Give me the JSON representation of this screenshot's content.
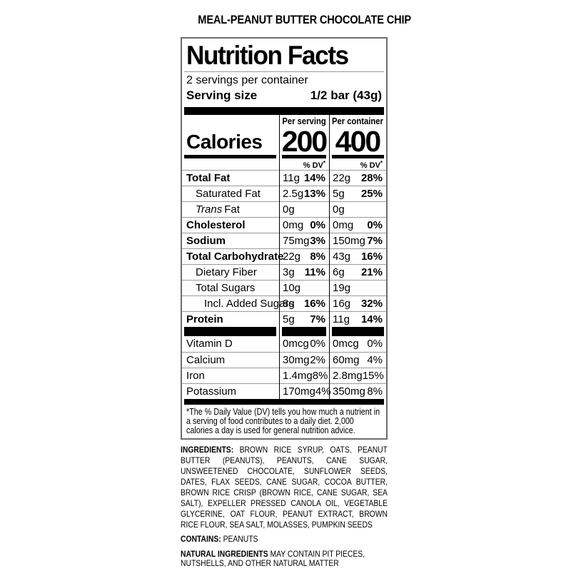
{
  "colors": {
    "ink": "#000000",
    "hairline": "#9a9a9a",
    "panel_border": "#6e6e6e"
  },
  "product_title": "MEAL-PEANUT BUTTER CHOCOLATE CHIP",
  "panel": {
    "title": "Nutrition Facts",
    "servings_per_container": "2 servings per container",
    "serving_size_label": "Serving size",
    "serving_size_value": "1/2 bar (43g)",
    "col_headers": {
      "per_serving": "Per serving",
      "per_container": "Per container"
    },
    "calories_label": "Calories",
    "calories_per_serving": "200",
    "calories_per_container": "400",
    "dv_header": "% DV",
    "dv_asterisk": "*",
    "rows": [
      {
        "label": "Total Fat",
        "ps": "11g",
        "psdv": "14%",
        "pc": "22g",
        "pcdv": "28%"
      },
      {
        "label": "Saturated Fat",
        "ps": "2.5g",
        "psdv": "13%",
        "pc": "5g",
        "pcdv": "25%"
      },
      {
        "label_italic": "Trans",
        "label_rest": "Fat",
        "ps": "0g",
        "psdv": "",
        "pc": "0g",
        "pcdv": ""
      },
      {
        "label": "Cholesterol",
        "ps": "0mg",
        "psdv": "0%",
        "pc": "0mg",
        "pcdv": "0%"
      },
      {
        "label": "Sodium",
        "ps": "75mg",
        "psdv": "3%",
        "pc": "150mg",
        "pcdv": "7%"
      },
      {
        "label": "Total Carbohydrate",
        "ps": "22g",
        "psdv": "8%",
        "pc": "43g",
        "pcdv": "16%"
      },
      {
        "label": "Dietary Fiber",
        "ps": "3g",
        "psdv": "11%",
        "pc": "6g",
        "pcdv": "21%"
      },
      {
        "label": "Total Sugars",
        "ps": "10g",
        "psdv": "",
        "pc": "19g",
        "pcdv": ""
      },
      {
        "label": "Incl. Added Sugars",
        "ps": "8g",
        "psdv": "16%",
        "pc": "16g",
        "pcdv": "32%"
      },
      {
        "label": "Protein",
        "ps": "5g",
        "psdv": "7%",
        "pc": "11g",
        "pcdv": "14%"
      }
    ],
    "vitamin_rows": [
      {
        "label": "Vitamin D",
        "ps": "0mcg",
        "psdv": "0%",
        "pc": "0mcg",
        "pcdv": "0%"
      },
      {
        "label": "Calcium",
        "ps": "30mg",
        "psdv": "2%",
        "pc": "60mg",
        "pcdv": "4%"
      },
      {
        "label": "Iron",
        "ps": "1.4mg",
        "psdv": "8%",
        "pc": "2.8mg",
        "pcdv": "15%"
      },
      {
        "label": "Potassium",
        "ps": "170mg",
        "psdv": "4%",
        "pc": "350mg",
        "pcdv": "8%"
      }
    ],
    "footnote": "*The % Daily Value (DV) tells you how much a nutrient in a serving of food contributes to a daily diet. 2,000 calories a day is used for general nutrition advice."
  },
  "ingredients": {
    "label": "INGREDIENTS:",
    "text": "BROWN RICE SYRUP, OATS, PEANUT BUTTER (PEANUTS), PEANUTS, CANE SUGAR, UNSWEETENED CHOCOLATE, SUNFLOWER SEEDS, DATES, FLAX SEEDS, CANE SUGAR, COCOA BUTTER, BROWN RICE CRISP (BROWN RICE, CANE SUGAR, SEA SALT), EXPELLER PRESSED CANOLA OIL, VEGETABLE GLYCERINE, OAT FLOUR, PEANUT EXTRACT, BROWN RICE FLOUR, SEA SALT, MOLASSES, PUMPKIN SEEDS"
  },
  "contains": {
    "label": "CONTAINS:",
    "text": "PEANUTS"
  },
  "natural": {
    "label": "NATURAL INGREDIENTS",
    "text": "MAY CONTAIN PIT PIECES, NUTSHELLS, AND OTHER NATURAL MATTER"
  }
}
